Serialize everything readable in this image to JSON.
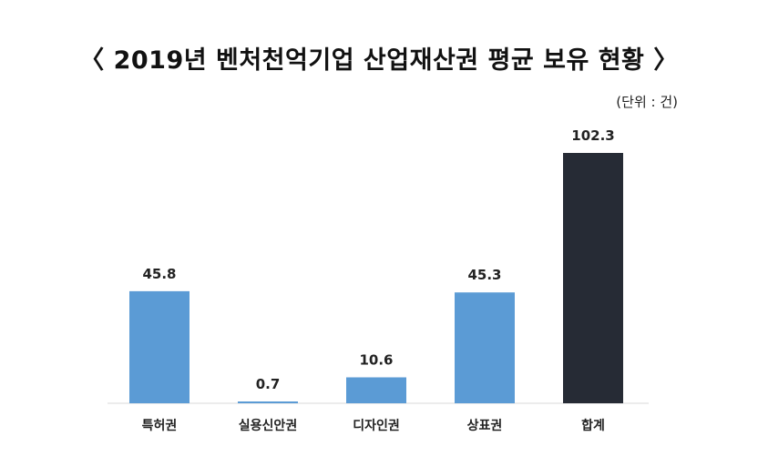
{
  "chart_data": {
    "type": "bar",
    "title": "〈 2019년 벤처천억기업 산업재산권 평균 보유 현황 〉",
    "unit_label": "(단위 : 건)",
    "categories": [
      "특허권",
      "실용신안권",
      "디자인권",
      "상표권",
      "합계"
    ],
    "values": [
      45.8,
      0.7,
      10.6,
      45.3,
      102.3
    ],
    "value_labels": [
      "45.8",
      "0.7",
      "10.6",
      "45.3",
      "102.3"
    ],
    "colors": [
      "#5b9bd5",
      "#5b9bd5",
      "#5b9bd5",
      "#5b9bd5",
      "#262b35"
    ],
    "ylim": [
      0,
      102.3
    ],
    "grid": false,
    "legend": "none"
  }
}
